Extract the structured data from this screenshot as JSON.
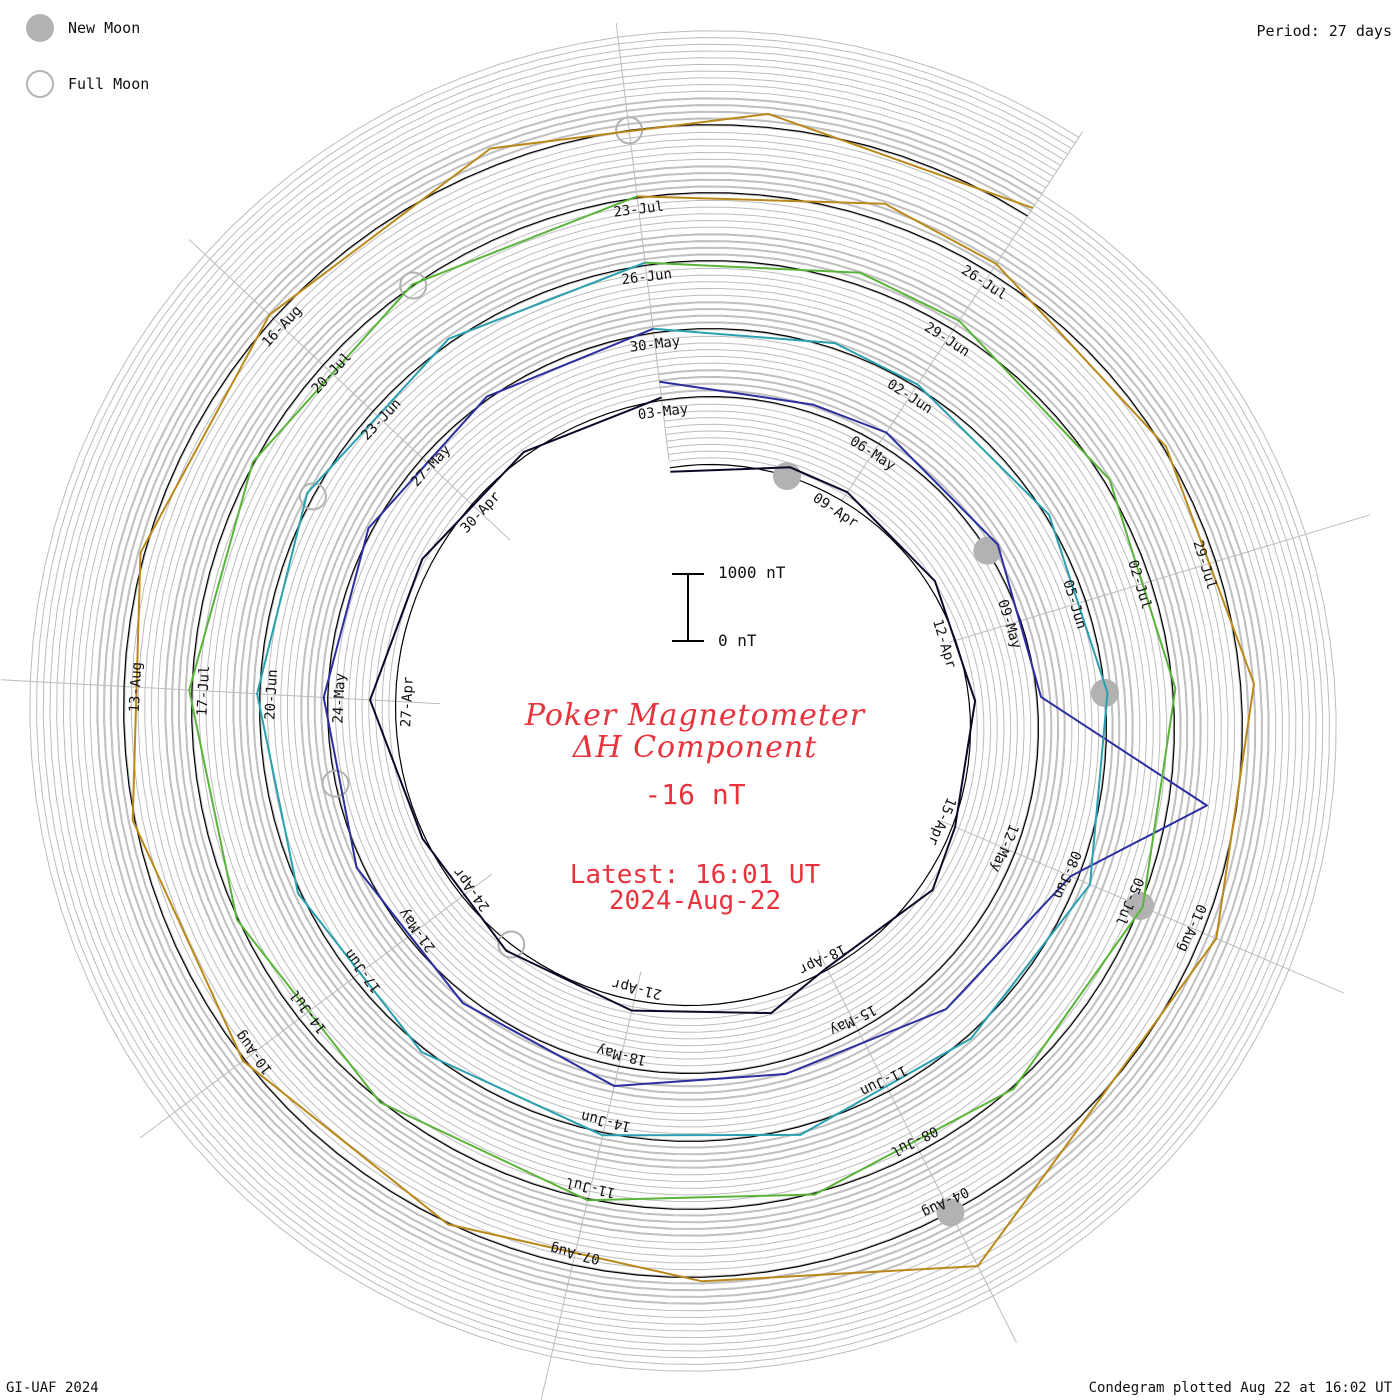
{
  "legend": {
    "new_moon_label": "New Moon",
    "full_moon_label": "Full Moon"
  },
  "period_text": "Period: 27 days",
  "credit_text": "GI-UAF 2024",
  "plotted_text": "Condegram plotted Aug 22 at 16:02 UT",
  "title_line1": "Poker Magnetometer",
  "title_line2": "ΔH Component",
  "current_value": "-16 nT",
  "latest_time": "Latest: 16:01 UT",
  "latest_date": "2024-Aug-22",
  "scale": {
    "top_label": "1000 nT",
    "bottom_label": "0 nT"
  },
  "colors": {
    "title": "#e8323c",
    "moon_marker": "#b2b2b2",
    "grid": "#bcbcbc",
    "baseline": "#000000"
  },
  "chart_data": {
    "type": "line",
    "description_units": "nT",
    "period_days": 27,
    "start_date": "2024-04-06",
    "end_date": "2024-08-22",
    "rotation_start_labels": [
      "09-Apr",
      "06-May",
      "02-Jun",
      "29-Jun",
      "26-Jul"
    ],
    "date_labels": [
      "09-Apr",
      "12-Apr",
      "15-Apr",
      "18-Apr",
      "21-Apr",
      "24-Apr",
      "27-Apr",
      "30-Apr",
      "03-May",
      "06-May",
      "09-May",
      "12-May",
      "15-May",
      "18-May",
      "21-May",
      "24-May",
      "27-May",
      "30-May",
      "02-Jun",
      "05-Jun",
      "08-Jun",
      "11-Jun",
      "14-Jun",
      "17-Jun",
      "20-Jun",
      "23-Jun",
      "26-Jun",
      "29-Jun",
      "02-Jul",
      "05-Jul",
      "08-Jul",
      "11-Jul",
      "14-Jul",
      "17-Jul",
      "20-Jul",
      "23-Jul",
      "26-Jul",
      "29-Jul",
      "01-Aug",
      "04-Aug",
      "07-Aug",
      "10-Aug",
      "13-Aug",
      "16-Aug"
    ],
    "series": [
      {
        "color": "#0a0a28",
        "x": [
          "2024-04-06",
          "2024-04-08",
          "2024-04-09",
          "2024-04-11",
          "2024-04-13",
          "2024-04-15",
          "2024-04-16",
          "2024-04-18",
          "2024-04-19",
          "2024-04-21",
          "2024-04-23",
          "2024-04-25",
          "2024-04-27",
          "2024-04-29",
          "2024-05-01",
          "2024-05-03"
        ],
        "y": [
          -60,
          140,
          150,
          110,
          90,
          40,
          180,
          -30,
          280,
          160,
          120,
          40,
          380,
          150,
          60,
          40
        ]
      },
      {
        "color": "#2b2fa0",
        "x": [
          "2024-05-03",
          "2024-05-05",
          "2024-05-06",
          "2024-05-08",
          "2024-05-10",
          "2024-05-11",
          "2024-05-12",
          "2024-05-14",
          "2024-05-16",
          "2024-05-18",
          "2024-05-20",
          "2024-05-22",
          "2024-05-24",
          "2024-05-26",
          "2024-05-28",
          "2024-05-30"
        ],
        "y": [
          280,
          120,
          200,
          180,
          60,
          2600,
          900,
          500,
          200,
          300,
          120,
          100,
          60,
          60,
          40,
          60
        ]
      },
      {
        "color": "#2aa0b0",
        "x": [
          "2024-05-30",
          "2024-06-01",
          "2024-06-02",
          "2024-06-04",
          "2024-06-06",
          "2024-06-08",
          "2024-06-10",
          "2024-06-12",
          "2024-06-14",
          "2024-06-16",
          "2024-06-18",
          "2024-06-20",
          "2024-06-22",
          "2024-06-24",
          "2024-06-26"
        ],
        "y": [
          60,
          80,
          40,
          50,
          40,
          200,
          60,
          120,
          40,
          60,
          40,
          40,
          100,
          60,
          40
        ]
      },
      {
        "color": "#5ab43a",
        "x": [
          "2024-06-26",
          "2024-06-28",
          "2024-06-29",
          "2024-07-01",
          "2024-07-03",
          "2024-07-05",
          "2024-07-07",
          "2024-07-09",
          "2024-07-11",
          "2024-07-13",
          "2024-07-15",
          "2024-07-17",
          "2024-07-19",
          "2024-07-21",
          "2024-07-23"
        ],
        "y": [
          40,
          180,
          160,
          80,
          40,
          40,
          30,
          20,
          20,
          20,
          20,
          40,
          20,
          20,
          20
        ]
      },
      {
        "color": "#b98a1a",
        "x": [
          "2024-07-23",
          "2024-07-25",
          "2024-07-26",
          "2024-07-28",
          "2024-07-30",
          "2024-08-01",
          "2024-08-03",
          "2024-08-04",
          "2024-08-06",
          "2024-08-08",
          "2024-08-10",
          "2024-08-12",
          "2024-08-14",
          "2024-08-16",
          "2024-08-18",
          "2024-08-20",
          "2024-08-22"
        ],
        "y": [
          20,
          260,
          160,
          40,
          200,
          220,
          180,
          900,
          60,
          20,
          30,
          30,
          60,
          80,
          260,
          200,
          140
        ]
      }
    ],
    "new_moons": [
      "2024-04-08",
      "2024-05-08",
      "2024-06-06",
      "2024-07-05",
      "2024-08-04"
    ],
    "full_moons": [
      "2024-04-23",
      "2024-05-23",
      "2024-06-22",
      "2024-07-21",
      "2024-08-19"
    ]
  }
}
